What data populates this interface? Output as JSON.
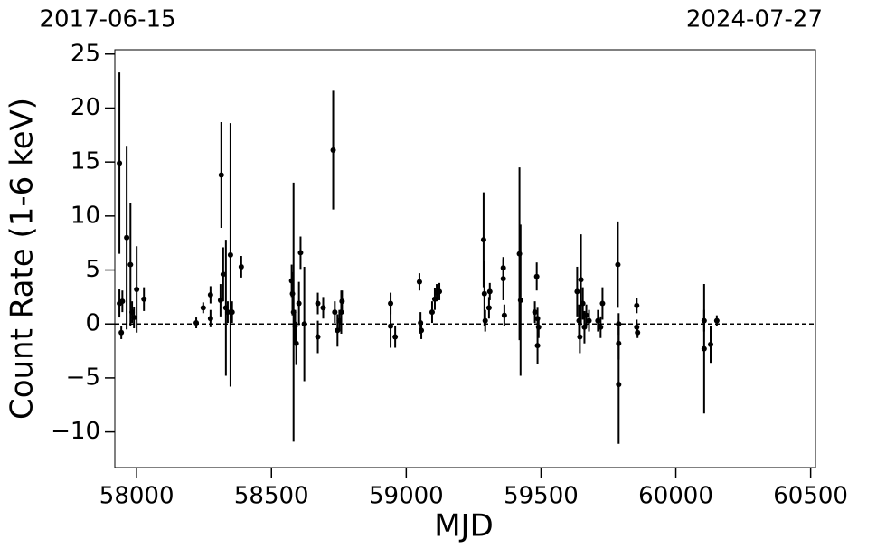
{
  "chart_data": {
    "type": "errorbar",
    "xlabel": "MJD",
    "ylabel": "Count Rate (1-6 keV)",
    "xlim": [
      57919,
      60518
    ],
    "ylim": [
      -13.3,
      25.4
    ],
    "xticks": [
      58000,
      58500,
      59000,
      59500,
      60000,
      60500
    ],
    "yticks": [
      {
        "value": -10,
        "label": "−10"
      },
      {
        "value": -5,
        "label": "−5"
      },
      0,
      5,
      10,
      15,
      20,
      25
    ],
    "x2ticks": [
      {
        "value": 57919,
        "label": "2017-06-15"
      },
      {
        "value": 60518,
        "label": "2024-07-27"
      }
    ],
    "reference_line": 0,
    "color": "#000000",
    "x": [
      57936,
      57936,
      57943,
      57947,
      57963,
      57977,
      57983,
      57990,
      58000,
      58027,
      58221,
      58247,
      58274,
      58274,
      58311,
      58314,
      58321,
      58331,
      58338,
      58348,
      58354,
      58388,
      58575,
      58578,
      58582,
      58588,
      58592,
      58602,
      58608,
      58622,
      58672,
      58672,
      58692,
      58729,
      58735,
      58745,
      58752,
      58759,
      58762,
      58942,
      58942,
      58959,
      59049,
      59053,
      59056,
      59096,
      59106,
      59113,
      59123,
      59287,
      59290,
      59293,
      59307,
      59310,
      59360,
      59360,
      59364,
      59420,
      59424,
      59477,
      59484,
      59487,
      59487,
      59491,
      59634,
      59641,
      59644,
      59648,
      59655,
      59661,
      59668,
      59678,
      59711,
      59721,
      59728,
      59785,
      59788,
      59788,
      59788,
      59855,
      59855,
      59858,
      60105,
      60105,
      60129,
      60152
    ],
    "values": [
      14.9,
      1.9,
      -0.8,
      2.1,
      8.0,
      5.5,
      1.1,
      0.6,
      3.2,
      2.3,
      0.1,
      1.5,
      2.7,
      0.5,
      2.2,
      13.8,
      4.6,
      1.5,
      1.1,
      6.4,
      1.1,
      5.3,
      4.0,
      2.8,
      1.1,
      -0.2,
      -1.8,
      1.9,
      6.6,
      0,
      -1.2,
      1.9,
      1.5,
      16.1,
      1.1,
      -0.6,
      0.3,
      1.1,
      2.1,
      1.9,
      -0.2,
      -1.2,
      3.9,
      0.1,
      -0.6,
      1.1,
      2.3,
      2.9,
      3.0,
      7.8,
      2.8,
      0.3,
      1.5,
      3.0,
      4.2,
      5.2,
      0.8,
      6.5,
      2.2,
      1.1,
      4.4,
      0.5,
      -2.0,
      -0.3,
      3.0,
      0.3,
      -1.2,
      4.1,
      1.9,
      -0.3,
      0.8,
      0.3,
      0.3,
      -0.3,
      1.9,
      5.5,
      -5.6,
      -1.8,
      0,
      1.7,
      -0.3,
      -0.8,
      -2.3,
      0.3,
      -1.9,
      0.3
    ],
    "errors": [
      8.4,
      1.3,
      0.6,
      1.0,
      8.5,
      5.7,
      1.0,
      1.0,
      4.0,
      1.1,
      0.5,
      0.5,
      0.8,
      0.8,
      1.5,
      4.9,
      2.5,
      6.3,
      1.0,
      12.2,
      1.0,
      1.0,
      1.5,
      2.0,
      12.0,
      1.5,
      2.0,
      2.0,
      1.5,
      5.3,
      1.5,
      1.0,
      1.0,
      5.5,
      1.0,
      1.5,
      1.0,
      2.0,
      1.0,
      1.0,
      2.0,
      1.0,
      0.8,
      1.0,
      0.8,
      1.0,
      1.0,
      0.8,
      0.8,
      4.4,
      3.0,
      1.0,
      1.0,
      0.8,
      2.0,
      0.8,
      1.0,
      8.0,
      7.0,
      1.0,
      1.3,
      1.0,
      1.7,
      1.0,
      2.3,
      1.5,
      1.5,
      4.2,
      1.5,
      1.5,
      1.0,
      1.0,
      1.0,
      1.0,
      1.5,
      4.0,
      5.5,
      1.5,
      1.0,
      0.7,
      0.7,
      0.5,
      6.0,
      1.0,
      1.7,
      0.5
    ]
  }
}
